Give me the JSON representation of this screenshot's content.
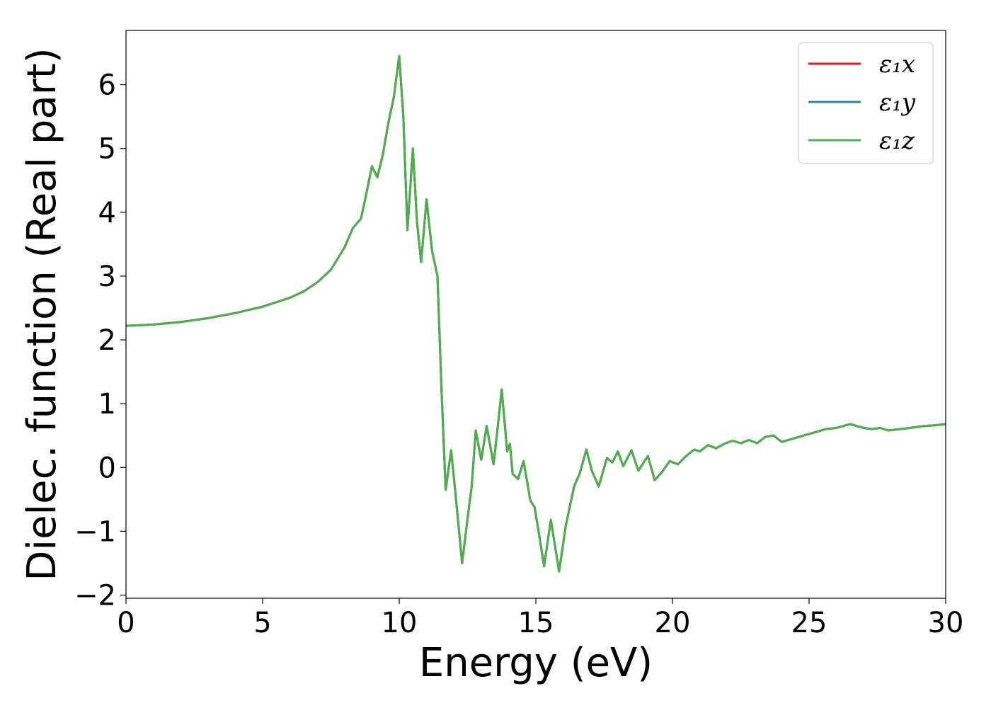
{
  "chart_data": {
    "type": "line",
    "xlabel": "Energy (eV)",
    "ylabel": "Dielec. function (Real part)",
    "xlim": [
      0,
      30
    ],
    "ylim": [
      -2.05,
      6.85
    ],
    "xticks": [
      0,
      5,
      10,
      15,
      20,
      25,
      30
    ],
    "xtick_labels": [
      "0",
      "5",
      "10",
      "15",
      "20",
      "25",
      "30"
    ],
    "yticks": [
      -2,
      -1,
      0,
      1,
      2,
      3,
      4,
      5,
      6
    ],
    "ytick_labels": [
      "−2",
      "−1",
      "0",
      "1",
      "2",
      "3",
      "4",
      "5",
      "6"
    ],
    "grid": false,
    "legend_position": "top-right",
    "x": [
      0,
      1,
      2,
      3,
      4,
      5,
      6,
      6.5,
      7,
      7.5,
      8,
      8.3,
      8.6,
      8.8,
      9.0,
      9.2,
      9.4,
      9.6,
      9.8,
      10.0,
      10.15,
      10.3,
      10.5,
      10.65,
      10.8,
      11.0,
      11.2,
      11.4,
      11.55,
      11.7,
      11.9,
      12.1,
      12.3,
      12.5,
      12.65,
      12.8,
      13.0,
      13.2,
      13.45,
      13.6,
      13.75,
      13.95,
      14.05,
      14.15,
      14.35,
      14.55,
      14.8,
      14.95,
      15.1,
      15.3,
      15.55,
      15.85,
      16.1,
      16.4,
      16.6,
      16.85,
      17.05,
      17.3,
      17.6,
      17.8,
      18.0,
      18.2,
      18.5,
      18.75,
      19.1,
      19.35,
      19.6,
      19.9,
      20.2,
      20.5,
      20.8,
      21.0,
      21.3,
      21.6,
      21.9,
      22.2,
      22.5,
      22.8,
      23.1,
      23.4,
      23.7,
      24.0,
      24.4,
      24.8,
      25.2,
      25.6,
      26.0,
      26.5,
      27.0,
      27.3,
      27.6,
      27.9,
      28.3,
      28.7,
      29.2,
      29.6,
      30.0
    ],
    "series": [
      {
        "name": "ε₁x",
        "color": "#e41a1c",
        "values": [
          2.22,
          2.24,
          2.28,
          2.34,
          2.42,
          2.52,
          2.66,
          2.76,
          2.9,
          3.1,
          3.45,
          3.75,
          3.9,
          4.3,
          4.72,
          4.55,
          4.9,
          5.4,
          5.8,
          6.45,
          5.5,
          3.72,
          5.0,
          3.85,
          3.22,
          4.2,
          3.4,
          3.0,
          1.2,
          -0.35,
          0.27,
          -0.6,
          -1.5,
          -0.8,
          -0.3,
          0.58,
          0.12,
          0.65,
          0.05,
          0.62,
          1.22,
          0.25,
          0.37,
          -0.1,
          -0.18,
          0.1,
          -0.52,
          -0.62,
          -1.0,
          -1.55,
          -0.82,
          -1.63,
          -0.9,
          -0.3,
          -0.1,
          0.28,
          -0.05,
          -0.3,
          0.15,
          0.08,
          0.25,
          0.02,
          0.27,
          -0.05,
          0.18,
          -0.2,
          -0.08,
          0.1,
          0.05,
          0.18,
          0.28,
          0.25,
          0.35,
          0.3,
          0.37,
          0.42,
          0.38,
          0.43,
          0.38,
          0.48,
          0.5,
          0.4,
          0.45,
          0.5,
          0.55,
          0.6,
          0.62,
          0.68,
          0.62,
          0.6,
          0.62,
          0.58,
          0.6,
          0.62,
          0.65,
          0.66,
          0.68
        ]
      },
      {
        "name": "ε₁y",
        "color": "#377eb8",
        "values": [
          2.22,
          2.24,
          2.28,
          2.34,
          2.42,
          2.52,
          2.66,
          2.76,
          2.9,
          3.1,
          3.45,
          3.75,
          3.9,
          4.3,
          4.72,
          4.55,
          4.9,
          5.4,
          5.8,
          6.45,
          5.5,
          3.72,
          5.0,
          3.85,
          3.22,
          4.2,
          3.4,
          3.0,
          1.2,
          -0.35,
          0.27,
          -0.6,
          -1.5,
          -0.8,
          -0.3,
          0.58,
          0.12,
          0.65,
          0.05,
          0.62,
          1.22,
          0.25,
          0.37,
          -0.1,
          -0.18,
          0.1,
          -0.52,
          -0.62,
          -1.0,
          -1.55,
          -0.82,
          -1.63,
          -0.9,
          -0.3,
          -0.1,
          0.28,
          -0.05,
          -0.3,
          0.15,
          0.08,
          0.25,
          0.02,
          0.27,
          -0.05,
          0.18,
          -0.2,
          -0.08,
          0.1,
          0.05,
          0.18,
          0.28,
          0.25,
          0.35,
          0.3,
          0.37,
          0.42,
          0.38,
          0.43,
          0.38,
          0.48,
          0.5,
          0.4,
          0.45,
          0.5,
          0.55,
          0.6,
          0.62,
          0.68,
          0.62,
          0.6,
          0.62,
          0.58,
          0.6,
          0.62,
          0.65,
          0.66,
          0.68
        ]
      },
      {
        "name": "ε₁z",
        "color": "#4daf4a",
        "values": [
          2.22,
          2.24,
          2.28,
          2.34,
          2.42,
          2.52,
          2.66,
          2.76,
          2.9,
          3.1,
          3.45,
          3.75,
          3.9,
          4.3,
          4.72,
          4.55,
          4.9,
          5.4,
          5.8,
          6.45,
          5.5,
          3.72,
          5.0,
          3.85,
          3.22,
          4.2,
          3.4,
          3.0,
          1.2,
          -0.35,
          0.27,
          -0.6,
          -1.5,
          -0.8,
          -0.3,
          0.58,
          0.12,
          0.65,
          0.05,
          0.62,
          1.22,
          0.25,
          0.37,
          -0.1,
          -0.18,
          0.1,
          -0.52,
          -0.62,
          -1.0,
          -1.55,
          -0.82,
          -1.63,
          -0.9,
          -0.3,
          -0.1,
          0.28,
          -0.05,
          -0.3,
          0.15,
          0.08,
          0.25,
          0.02,
          0.27,
          -0.05,
          0.18,
          -0.2,
          -0.08,
          0.1,
          0.05,
          0.18,
          0.28,
          0.25,
          0.35,
          0.3,
          0.37,
          0.42,
          0.38,
          0.43,
          0.38,
          0.48,
          0.5,
          0.4,
          0.45,
          0.5,
          0.55,
          0.6,
          0.62,
          0.68,
          0.62,
          0.6,
          0.62,
          0.58,
          0.6,
          0.62,
          0.65,
          0.66,
          0.68
        ]
      }
    ]
  }
}
